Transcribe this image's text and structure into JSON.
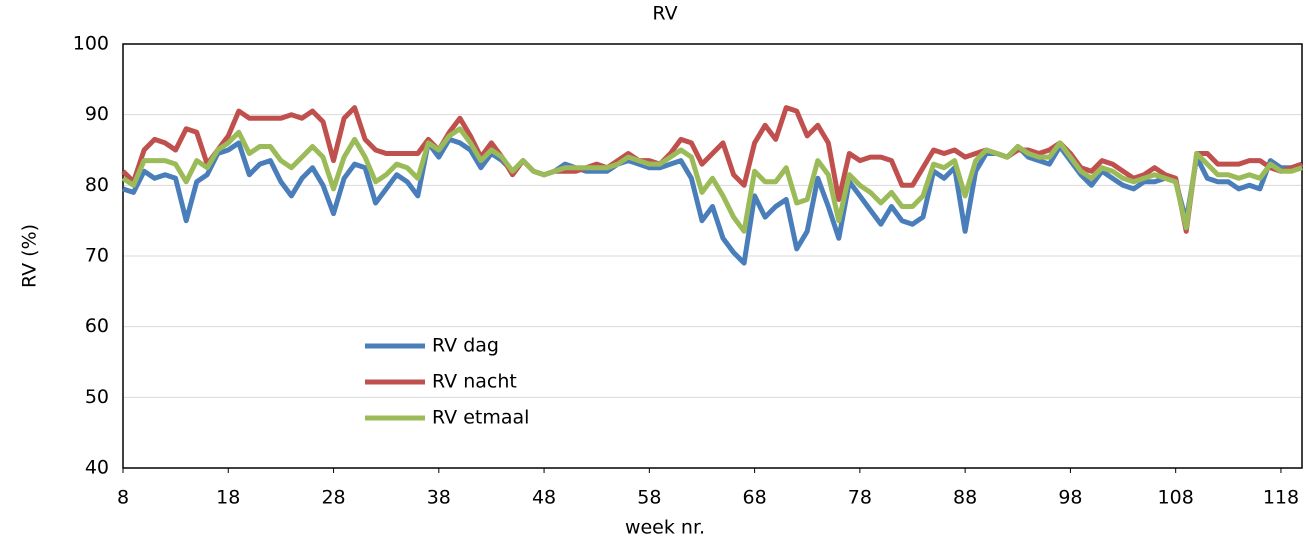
{
  "chart_data": {
    "type": "line",
    "title": "RV",
    "x_label": "week nr.",
    "y_label": "RV (%)",
    "x": [
      8,
      9,
      10,
      11,
      12,
      13,
      14,
      15,
      16,
      17,
      18,
      19,
      20,
      21,
      22,
      23,
      24,
      25,
      26,
      27,
      28,
      29,
      30,
      31,
      32,
      33,
      34,
      35,
      36,
      37,
      38,
      39,
      40,
      41,
      42,
      43,
      44,
      45,
      46,
      47,
      48,
      49,
      50,
      51,
      52,
      53,
      54,
      55,
      56,
      57,
      58,
      59,
      60,
      61,
      62,
      63,
      64,
      65,
      66,
      67,
      68,
      69,
      70,
      71,
      72,
      73,
      74,
      75,
      76,
      77,
      78,
      79,
      80,
      81,
      82,
      83,
      84,
      85,
      86,
      87,
      88,
      89,
      90,
      91,
      92,
      93,
      94,
      95,
      96,
      97,
      98,
      99,
      100,
      101,
      102,
      103,
      104,
      105,
      106,
      107,
      108,
      109,
      110,
      111,
      112,
      113,
      114,
      115,
      116,
      117,
      118,
      119,
      120
    ],
    "series": [
      {
        "name": "RV dag",
        "color": "#4a7ebb",
        "values": [
          79.5,
          79,
          82,
          81,
          81.5,
          81,
          75,
          80.5,
          81.5,
          84.5,
          85,
          86,
          81.5,
          83,
          83.5,
          80.5,
          78.5,
          81,
          82.5,
          80,
          76,
          81,
          83,
          82.5,
          77.5,
          79.5,
          81.5,
          80.5,
          78.5,
          86,
          84,
          86.5,
          86,
          85,
          82.5,
          84.5,
          83.5,
          82,
          83.5,
          82,
          81.5,
          82,
          83,
          82.5,
          82,
          82,
          82,
          83,
          83.5,
          83,
          82.5,
          82.5,
          83,
          83.5,
          81,
          75,
          77,
          72.5,
          70.5,
          69,
          78.5,
          75.5,
          77,
          78,
          71,
          73.5,
          81,
          77,
          72.5,
          80.5,
          78.5,
          76.5,
          74.5,
          77,
          75,
          74.5,
          75.5,
          82,
          81,
          82.5,
          73.5,
          82,
          84.5,
          84.5,
          84,
          85.5,
          84,
          83.5,
          83,
          85.5,
          83.5,
          81.5,
          80,
          82,
          81,
          80,
          79.5,
          80.5,
          80.5,
          81,
          80.5,
          75,
          84,
          81,
          80.5,
          80.5,
          79.5,
          80,
          79.5,
          83.5,
          82.5,
          82.5,
          83
        ]
      },
      {
        "name": "RV nacht",
        "color": "#c0504d",
        "values": [
          82,
          80.5,
          85,
          86.5,
          86,
          85,
          88,
          87.5,
          83,
          85,
          87,
          90.5,
          89.5,
          89.5,
          89.5,
          89.5,
          90,
          89.5,
          90.5,
          89,
          83.5,
          89.5,
          91,
          86.5,
          85,
          84.5,
          84.5,
          84.5,
          84.5,
          86.5,
          85,
          87.5,
          89.5,
          87,
          84,
          86,
          84,
          81.5,
          83.5,
          82,
          81.5,
          82,
          82,
          82,
          82.5,
          83,
          82.5,
          83.5,
          84.5,
          83.5,
          83.5,
          83,
          84.5,
          86.5,
          86,
          83,
          84.5,
          86,
          81.5,
          80,
          86,
          88.5,
          86.5,
          91,
          90.5,
          87,
          88.5,
          86,
          78,
          84.5,
          83.5,
          84,
          84,
          83.5,
          80,
          80,
          82.5,
          85,
          84.5,
          85,
          84,
          84.5,
          85,
          84.5,
          84,
          85,
          85,
          84.5,
          85,
          86,
          84.5,
          82.5,
          82,
          83.5,
          83,
          82,
          81,
          81.5,
          82.5,
          81.5,
          81,
          73.5,
          84.5,
          84.5,
          83,
          83,
          83,
          83.5,
          83.5,
          82.5,
          82,
          82.5,
          83
        ]
      },
      {
        "name": "RV etmaal",
        "color": "#9bbb59",
        "values": [
          81,
          80,
          83.5,
          83.5,
          83.5,
          83,
          80.5,
          83.5,
          82.5,
          85,
          86,
          87.5,
          84.5,
          85.5,
          85.5,
          83.5,
          82.5,
          84,
          85.5,
          84,
          79.5,
          84,
          86.5,
          84,
          80.5,
          81.5,
          83,
          82.5,
          81,
          86,
          85,
          87,
          88,
          86,
          83.5,
          85,
          84,
          82,
          83.5,
          82,
          81.5,
          82,
          82.5,
          82.5,
          82.5,
          82.5,
          82.5,
          83,
          84,
          83.5,
          83,
          83,
          84,
          85,
          84,
          79,
          81,
          78.5,
          75.5,
          73.5,
          82,
          80.5,
          80.5,
          82.5,
          77.5,
          78,
          83.5,
          81.5,
          75,
          81.5,
          80,
          79,
          77.5,
          79,
          77,
          77,
          78.5,
          83,
          82.5,
          83.5,
          78.5,
          83.5,
          85,
          84.5,
          84,
          85.5,
          84.5,
          84,
          84,
          86,
          84,
          82,
          81,
          82.5,
          82,
          81,
          80.5,
          81,
          81.5,
          81,
          80.5,
          74,
          84.5,
          83,
          81.5,
          81.5,
          81,
          81.5,
          81,
          83,
          82,
          82,
          82.5
        ]
      }
    ],
    "xlim": [
      8,
      120
    ],
    "xticks": [
      8,
      18,
      28,
      38,
      48,
      58,
      68,
      78,
      88,
      98,
      108,
      118
    ],
    "ylim": [
      40,
      100
    ],
    "yticks": [
      40,
      50,
      60,
      70,
      80,
      90,
      100
    ],
    "grid": true
  }
}
